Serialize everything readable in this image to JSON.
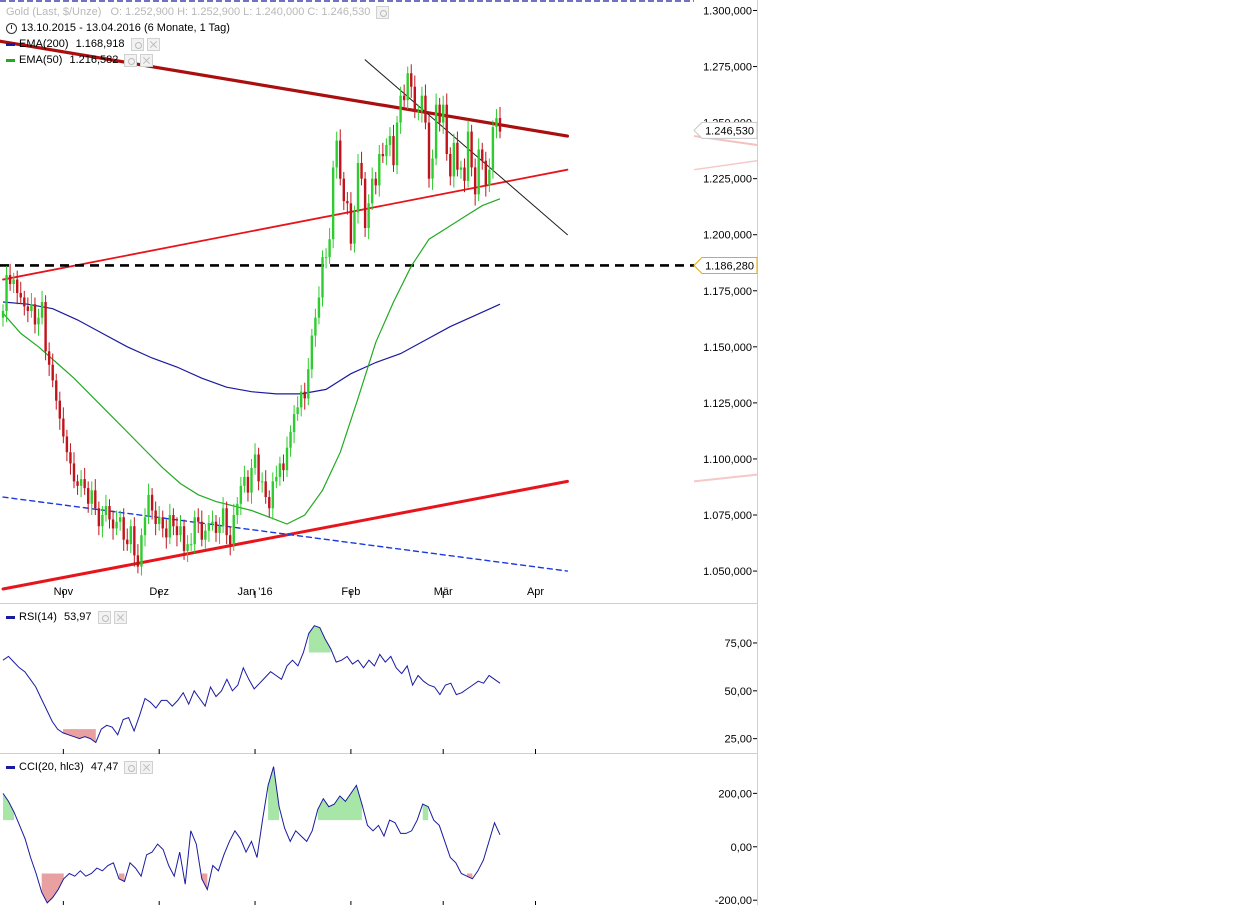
{
  "header": {
    "instrument": "Gold (Last, $/Unze)",
    "ohlc": "O: 1.252,900   H: 1.252,900   L: 1.240,000   C: 1.246,530",
    "period": "13.10.2015 - 13.04.2016 (6 Monate, 1 Tag)",
    "ema200_label": "EMA(200)",
    "ema200_value": "1.168,918",
    "ema50_label": "EMA(50)",
    "ema50_value": "1.216,582",
    "rsi_label": "RSI(14)",
    "rsi_value": "53,97",
    "cci_label": "CCI(20, hlc3)",
    "cci_value": "47,47"
  },
  "colors": {
    "up": "#2ecc2e",
    "down": "#c0141c",
    "ema200": "#1a1aa0",
    "ema50": "#22aa22",
    "trend_main": "#aa0f0f",
    "trend_red": "#e8141c",
    "support_blue": "#1a3ae0",
    "fill_green": "#a8e6a8",
    "fill_red": "#e8a0a0",
    "osc_line": "#1a1aa0",
    "price_tag_border": "#e0b000"
  },
  "chart_data": [
    {
      "type": "candlestick",
      "title": "Gold (Last, $/Unze)",
      "x_tick_labels": [
        "Nov",
        "Dez",
        "Jan '16",
        "Feb",
        "Mär",
        "Apr"
      ],
      "y_ticks": [
        1050,
        1075,
        1100,
        1125,
        1150,
        1175,
        1200,
        1225,
        1250,
        1275,
        1300
      ],
      "y_tick_labels": [
        "1.050,000",
        "1.075,000",
        "1.100,000",
        "1.125,000",
        "1.150,000",
        "1.175,000",
        "1.200,000",
        "1.225,000",
        "1.250,000",
        "1.275,000",
        "1.300,000"
      ],
      "ylim": [
        1042,
        1302
      ],
      "current_price_label": "1.246,530",
      "horizontal_level_label": "1.186,280",
      "horizontal_level": 1186.28,
      "close": [
        1166,
        1182,
        1178,
        1180,
        1174,
        1172,
        1168,
        1166,
        1169,
        1160,
        1163,
        1170,
        1148,
        1142,
        1135,
        1126,
        1118,
        1110,
        1103,
        1098,
        1090,
        1088,
        1091,
        1087,
        1080,
        1086,
        1078,
        1070,
        1075,
        1079,
        1073,
        1069,
        1072,
        1074,
        1064,
        1062,
        1070,
        1057,
        1052,
        1066,
        1074,
        1084,
        1077,
        1071,
        1074,
        1069,
        1065,
        1075,
        1070,
        1066,
        1070,
        1059,
        1062,
        1062,
        1074,
        1072,
        1064,
        1068,
        1071,
        1072,
        1067,
        1070,
        1078,
        1066,
        1062,
        1075,
        1080,
        1088,
        1092,
        1085,
        1096,
        1102,
        1090,
        1090,
        1083,
        1078,
        1090,
        1092,
        1098,
        1095,
        1105,
        1112,
        1120,
        1123,
        1130,
        1127,
        1140,
        1155,
        1163,
        1172,
        1190,
        1190,
        1198,
        1230,
        1242,
        1225,
        1215,
        1214,
        1196,
        1210,
        1232,
        1225,
        1203,
        1214,
        1225,
        1222,
        1236,
        1235,
        1240,
        1244,
        1231,
        1250,
        1262,
        1260,
        1272,
        1266,
        1255,
        1255,
        1262,
        1250,
        1225,
        1234,
        1258,
        1250,
        1258,
        1236,
        1226,
        1241,
        1229,
        1230,
        1224,
        1246,
        1230,
        1218,
        1238,
        1233,
        1222,
        1229,
        1248,
        1252,
        1246
      ],
      "ema50": [
        1165,
        1156,
        1150,
        1143,
        1136,
        1128,
        1120,
        1112,
        1104,
        1096,
        1089,
        1084,
        1081,
        1079,
        1077,
        1074,
        1071,
        1075,
        1086,
        1103,
        1127,
        1152,
        1170,
        1186,
        1198,
        1203,
        1208,
        1213,
        1216
      ],
      "ema200": [
        1170,
        1169,
        1167,
        1162,
        1156,
        1150,
        1145,
        1141,
        1136,
        1132,
        1130,
        1129,
        1129,
        1131,
        1138,
        1143,
        1147,
        1153,
        1159,
        1164,
        1169
      ],
      "trendlines": [
        {
          "name": "Resistance",
          "from": [
            -15,
            1290
          ],
          "to": [
            159,
            1244
          ]
        },
        {
          "name": "Upper Support",
          "from": [
            0,
            1180
          ],
          "to": [
            159,
            1229
          ]
        },
        {
          "name": "Lower Support",
          "from": [
            0,
            1042
          ],
          "to": [
            159,
            1090
          ]
        },
        {
          "name": "Short Resistance",
          "from": [
            102,
            1278
          ],
          "to": [
            159,
            1200
          ]
        },
        {
          "name": "Blue Dashed Support",
          "from": [
            0,
            1083
          ],
          "to": [
            159,
            1050
          ]
        }
      ]
    },
    {
      "type": "line",
      "title": "RSI(14)",
      "y_ticks": [
        25,
        50,
        75
      ],
      "y_tick_labels": [
        "25,00",
        "50,00",
        "75,00"
      ],
      "ylim": [
        17.5,
        87
      ],
      "values": [
        66,
        68,
        65,
        62,
        60,
        56,
        52,
        46,
        40,
        34,
        30,
        28,
        27,
        26,
        25,
        26,
        25,
        23,
        30,
        32,
        31,
        27,
        35,
        36,
        29,
        37,
        46,
        44,
        41,
        45,
        45,
        42,
        45,
        49,
        43,
        50,
        46,
        42,
        52,
        47,
        50,
        56,
        50,
        53,
        62,
        56,
        51,
        54,
        57,
        60,
        58,
        56,
        63,
        66,
        63,
        70,
        80,
        84,
        83,
        77,
        72,
        65,
        66,
        68,
        64,
        66,
        62,
        66,
        63,
        69,
        65,
        68,
        62,
        59,
        63,
        53,
        58,
        55,
        53,
        52,
        48,
        53,
        54,
        48,
        49,
        51,
        53,
        55,
        54,
        58,
        56,
        54
      ]
    },
    {
      "type": "line",
      "title": "CCI(20, hlc3)",
      "y_ticks": [
        -200,
        0,
        200
      ],
      "y_tick_labels": [
        "-200,00",
        "0,00",
        "200,00"
      ],
      "ylim": [
        -218,
        310
      ],
      "values": [
        200,
        170,
        130,
        80,
        30,
        -40,
        -100,
        -170,
        -210,
        -190,
        -160,
        -120,
        -100,
        -110,
        -90,
        -110,
        -100,
        -80,
        -90,
        -70,
        -60,
        -120,
        -130,
        -60,
        -80,
        -110,
        -30,
        -20,
        10,
        -10,
        -70,
        -110,
        -20,
        -140,
        60,
        10,
        -120,
        -160,
        -70,
        -90,
        -30,
        20,
        60,
        30,
        -20,
        20,
        -40,
        100,
        230,
        300,
        150,
        70,
        20,
        60,
        40,
        20,
        60,
        140,
        180,
        150,
        160,
        190,
        170,
        200,
        230,
        160,
        80,
        60,
        80,
        40,
        100,
        90,
        50,
        50,
        60,
        100,
        160,
        150,
        100,
        80,
        20,
        -40,
        -60,
        -100,
        -110,
        -120,
        -90,
        -50,
        20,
        90,
        45
      ]
    }
  ]
}
